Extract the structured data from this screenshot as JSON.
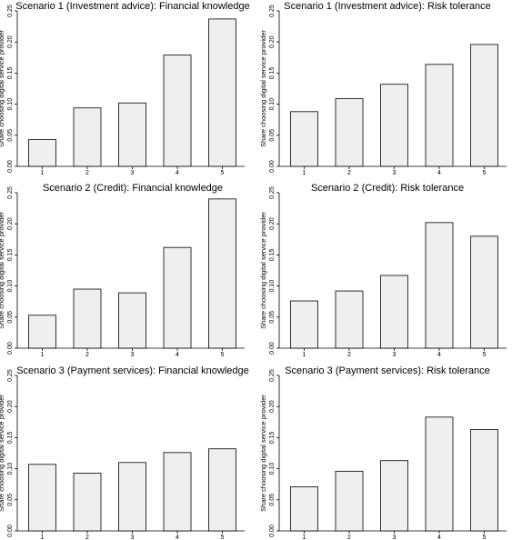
{
  "chart_data": [
    {
      "type": "bar",
      "title": "Scenario 1 (Investment advice): Financial knowledge",
      "ylabel": "Share choosing digital service provider",
      "xlabel": "",
      "categories": [
        "1",
        "2",
        "3",
        "4",
        "5"
      ],
      "values": [
        0.043,
        0.094,
        0.102,
        0.179,
        0.237
      ],
      "ylim": [
        0,
        0.25
      ],
      "yticks": [
        "0.00",
        "0.05",
        "0.10",
        "0.15",
        "0.20",
        "0.25"
      ],
      "grid": false,
      "colors": {
        "bar_fill": "#efefef",
        "bar_stroke": "#000000"
      }
    },
    {
      "type": "bar",
      "title": "Scenario 1 (Investment advice): Risk tolerance",
      "ylabel": "Share choosing digital service provider",
      "xlabel": "",
      "categories": [
        "1",
        "2",
        "3",
        "4",
        "5"
      ],
      "values": [
        0.088,
        0.109,
        0.132,
        0.164,
        0.196
      ],
      "ylim": [
        0,
        0.25
      ],
      "yticks": [
        "0.00",
        "0.05",
        "0.10",
        "0.15",
        "0.20",
        "0.25"
      ],
      "grid": false,
      "colors": {
        "bar_fill": "#efefef",
        "bar_stroke": "#000000"
      }
    },
    {
      "type": "bar",
      "title": "Scenario 2 (Credit): Financial knowledge",
      "ylabel": "Share choosing digital service provider",
      "xlabel": "",
      "categories": [
        "1",
        "2",
        "3",
        "4",
        "5"
      ],
      "values": [
        0.053,
        0.095,
        0.089,
        0.162,
        0.24
      ],
      "ylim": [
        0,
        0.25
      ],
      "yticks": [
        "0.00",
        "0.05",
        "0.10",
        "0.15",
        "0.20",
        "0.25"
      ],
      "grid": false,
      "colors": {
        "bar_fill": "#efefef",
        "bar_stroke": "#000000"
      }
    },
    {
      "type": "bar",
      "title": "Scenario 2 (Credit): Risk tolerance",
      "ylabel": "Share choosing digital service provider",
      "xlabel": "",
      "categories": [
        "1",
        "2",
        "3",
        "4",
        "5"
      ],
      "values": [
        0.076,
        0.092,
        0.117,
        0.202,
        0.18
      ],
      "ylim": [
        0,
        0.25
      ],
      "yticks": [
        "0.00",
        "0.05",
        "0.10",
        "0.15",
        "0.20",
        "0.25"
      ],
      "grid": false,
      "colors": {
        "bar_fill": "#efefef",
        "bar_stroke": "#000000"
      }
    },
    {
      "type": "bar",
      "title": "Scenario 3 (Payment services): Financial knowledge",
      "ylabel": "Share choosing digital service provider",
      "xlabel": "",
      "categories": [
        "1",
        "2",
        "3",
        "4",
        "5"
      ],
      "values": [
        0.107,
        0.093,
        0.11,
        0.126,
        0.132
      ],
      "ylim": [
        0,
        0.25
      ],
      "yticks": [
        "0.00",
        "0.05",
        "0.10",
        "0.15",
        "0.20",
        "0.25"
      ],
      "grid": false,
      "colors": {
        "bar_fill": "#efefef",
        "bar_stroke": "#000000"
      }
    },
    {
      "type": "bar",
      "title": "Scenario 3 (Payment services): Risk tolerance",
      "ylabel": "Share choosing digital service provider",
      "xlabel": "",
      "categories": [
        "1",
        "2",
        "3",
        "4",
        "5"
      ],
      "values": [
        0.071,
        0.096,
        0.113,
        0.183,
        0.163
      ],
      "ylim": [
        0,
        0.25
      ],
      "yticks": [
        "0.00",
        "0.05",
        "0.10",
        "0.15",
        "0.20",
        "0.25"
      ],
      "grid": false,
      "colors": {
        "bar_fill": "#efefef",
        "bar_stroke": "#000000"
      }
    }
  ]
}
